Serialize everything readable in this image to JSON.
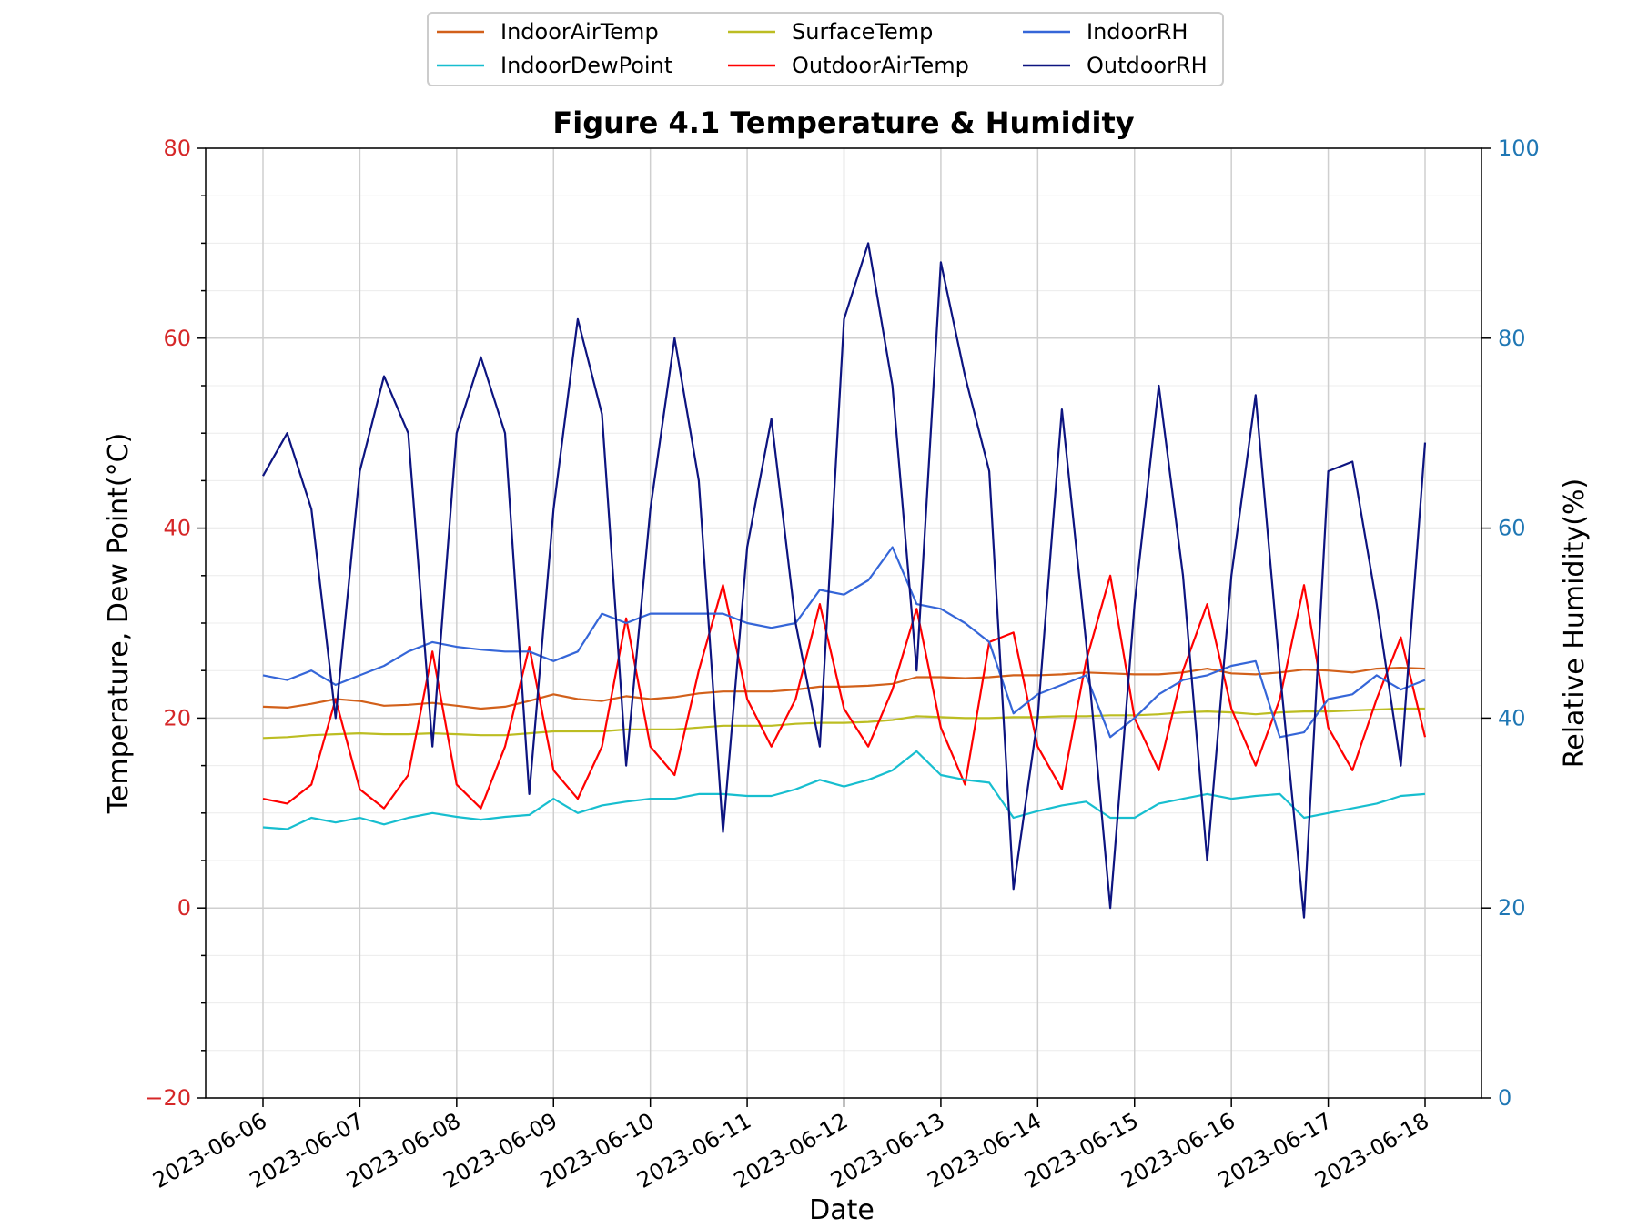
{
  "chart_data": {
    "type": "line",
    "title": "Figure 4.1 Temperature & Humidity",
    "xlabel": "Date",
    "ylabel_left": "Temperature, Dew Point(°C)",
    "ylabel_right": "Relative Humidity(%)",
    "ylim_left": [
      -20,
      80
    ],
    "ylim_right": [
      0,
      100
    ],
    "yticks_left": [
      "−20",
      "0",
      "20",
      "40",
      "60",
      "80"
    ],
    "yticks_right": [
      "0",
      "20",
      "40",
      "60",
      "80",
      "100"
    ],
    "xlim": [
      "2023-06-06",
      "2023-06-18"
    ],
    "xticks": [
      "2023-06-06",
      "2023-06-07",
      "2023-06-08",
      "2023-06-09",
      "2023-06-10",
      "2023-06-11",
      "2023-06-12",
      "2023-06-13",
      "2023-06-14",
      "2023-06-15",
      "2023-06-16",
      "2023-06-17",
      "2023-06-18"
    ],
    "grid": true,
    "legend_position": "top-center",
    "colors": {
      "left_axis": "#d62728",
      "right_axis": "#1f77b4"
    },
    "x": [
      "2023-06-06 00:00",
      "2023-06-06 06:00",
      "2023-06-06 12:00",
      "2023-06-06 18:00",
      "2023-06-07 00:00",
      "2023-06-07 06:00",
      "2023-06-07 12:00",
      "2023-06-07 18:00",
      "2023-06-08 00:00",
      "2023-06-08 06:00",
      "2023-06-08 12:00",
      "2023-06-08 18:00",
      "2023-06-09 00:00",
      "2023-06-09 06:00",
      "2023-06-09 12:00",
      "2023-06-09 18:00",
      "2023-06-10 00:00",
      "2023-06-10 06:00",
      "2023-06-10 12:00",
      "2023-06-10 18:00",
      "2023-06-11 00:00",
      "2023-06-11 06:00",
      "2023-06-11 12:00",
      "2023-06-11 18:00",
      "2023-06-12 00:00",
      "2023-06-12 06:00",
      "2023-06-12 12:00",
      "2023-06-12 18:00",
      "2023-06-13 00:00",
      "2023-06-13 06:00",
      "2023-06-13 12:00",
      "2023-06-13 18:00",
      "2023-06-14 00:00",
      "2023-06-14 06:00",
      "2023-06-14 12:00",
      "2023-06-14 18:00",
      "2023-06-15 00:00",
      "2023-06-15 06:00",
      "2023-06-15 12:00",
      "2023-06-15 18:00",
      "2023-06-16 00:00",
      "2023-06-16 06:00",
      "2023-06-16 12:00",
      "2023-06-16 18:00",
      "2023-06-17 00:00",
      "2023-06-17 06:00",
      "2023-06-17 12:00",
      "2023-06-17 18:00",
      "2023-06-18 00:00"
    ],
    "series": [
      {
        "name": "IndoorAirTemp",
        "axis": "left",
        "color": "#d2601a",
        "values": [
          21.2,
          21.1,
          21.5,
          22.0,
          21.8,
          21.3,
          21.4,
          21.6,
          21.3,
          21.0,
          21.2,
          21.8,
          22.5,
          22.0,
          21.8,
          22.3,
          22.0,
          22.2,
          22.6,
          22.8,
          22.8,
          22.8,
          23.0,
          23.3,
          23.3,
          23.4,
          23.6,
          24.3,
          24.3,
          24.2,
          24.3,
          24.5,
          24.5,
          24.6,
          24.8,
          24.7,
          24.6,
          24.6,
          24.8,
          25.2,
          24.7,
          24.6,
          24.8,
          25.1,
          25.0,
          24.8,
          25.2,
          25.3,
          25.2
        ]
      },
      {
        "name": "SurfaceTemp",
        "axis": "left",
        "color": "#bcbd22",
        "values": [
          17.9,
          18.0,
          18.2,
          18.3,
          18.4,
          18.3,
          18.3,
          18.4,
          18.3,
          18.2,
          18.2,
          18.4,
          18.6,
          18.6,
          18.6,
          18.8,
          18.8,
          18.8,
          19.0,
          19.2,
          19.2,
          19.2,
          19.4,
          19.5,
          19.5,
          19.6,
          19.8,
          20.2,
          20.1,
          20.0,
          20.0,
          20.1,
          20.1,
          20.2,
          20.2,
          20.3,
          20.3,
          20.4,
          20.6,
          20.7,
          20.6,
          20.4,
          20.6,
          20.7,
          20.7,
          20.8,
          20.9,
          21.0,
          21.0
        ]
      },
      {
        "name": "OutdoorAirTemp",
        "axis": "left",
        "color": "#ff0000",
        "values": [
          11.5,
          11.0,
          13.0,
          22.0,
          12.5,
          10.5,
          14.0,
          27.0,
          13.0,
          10.5,
          17.0,
          27.5,
          14.5,
          11.5,
          17.0,
          30.5,
          17.0,
          14.0,
          25.0,
          34.0,
          22.0,
          17.0,
          22.0,
          32.0,
          21.0,
          17.0,
          23.0,
          31.5,
          19.0,
          13.0,
          28.0,
          29.0,
          17.0,
          12.5,
          26.0,
          35.0,
          20.0,
          14.5,
          25.0,
          32.0,
          21.0,
          15.0,
          22.0,
          34.0,
          19.0,
          14.5,
          22.0,
          28.5,
          18.0
        ]
      },
      {
        "name": "IndoorDewPoint",
        "axis": "left",
        "color": "#17becf",
        "values": [
          8.5,
          8.3,
          9.5,
          9.0,
          9.5,
          8.8,
          9.5,
          10.0,
          9.6,
          9.3,
          9.6,
          9.8,
          11.5,
          10.0,
          10.8,
          11.2,
          11.5,
          11.5,
          12.0,
          12.0,
          11.8,
          11.8,
          12.5,
          13.5,
          12.8,
          13.5,
          14.5,
          16.5,
          14.0,
          13.5,
          13.2,
          9.5,
          10.2,
          10.8,
          11.2,
          9.5,
          9.5,
          11.0,
          11.5,
          12.0,
          11.5,
          11.8,
          12.0,
          9.5,
          10.0,
          10.5,
          11.0,
          11.8,
          12.0
        ]
      },
      {
        "name": "IndoorRH",
        "axis": "right",
        "color": "#3566d8",
        "values": [
          44.5,
          44.0,
          45.0,
          43.5,
          44.5,
          45.5,
          47.0,
          48.0,
          47.5,
          47.2,
          47.0,
          47.0,
          46.0,
          47.0,
          51.0,
          50.0,
          51.0,
          51.0,
          51.0,
          51.0,
          50.0,
          49.5,
          50.0,
          53.5,
          53.0,
          54.5,
          58.0,
          52.0,
          51.5,
          50.0,
          48.0,
          40.5,
          42.5,
          43.5,
          44.5,
          38.0,
          40.0,
          42.5,
          44.0,
          44.5,
          45.5,
          46.0,
          38.0,
          38.5,
          42.0,
          42.5,
          44.5,
          43.0,
          44.0
        ]
      },
      {
        "name": "OutdoorRH",
        "axis": "right",
        "color": "#0d1480",
        "values": [
          65.5,
          70.0,
          62.0,
          40.0,
          66.0,
          76.0,
          70.0,
          37.0,
          70.0,
          78.0,
          70.0,
          32.0,
          62.0,
          82.0,
          72.0,
          35.0,
          62.0,
          80.0,
          65.0,
          28.0,
          58.0,
          71.5,
          50.0,
          37.0,
          82.0,
          90.0,
          75.0,
          45.0,
          88.0,
          76.0,
          66.0,
          22.0,
          40.0,
          72.5,
          48.0,
          20.0,
          52.0,
          75.0,
          55.0,
          25.0,
          55.0,
          74.0,
          45.0,
          19.0,
          66.0,
          67.0,
          52.0,
          35.0,
          69.0
        ]
      }
    ]
  }
}
